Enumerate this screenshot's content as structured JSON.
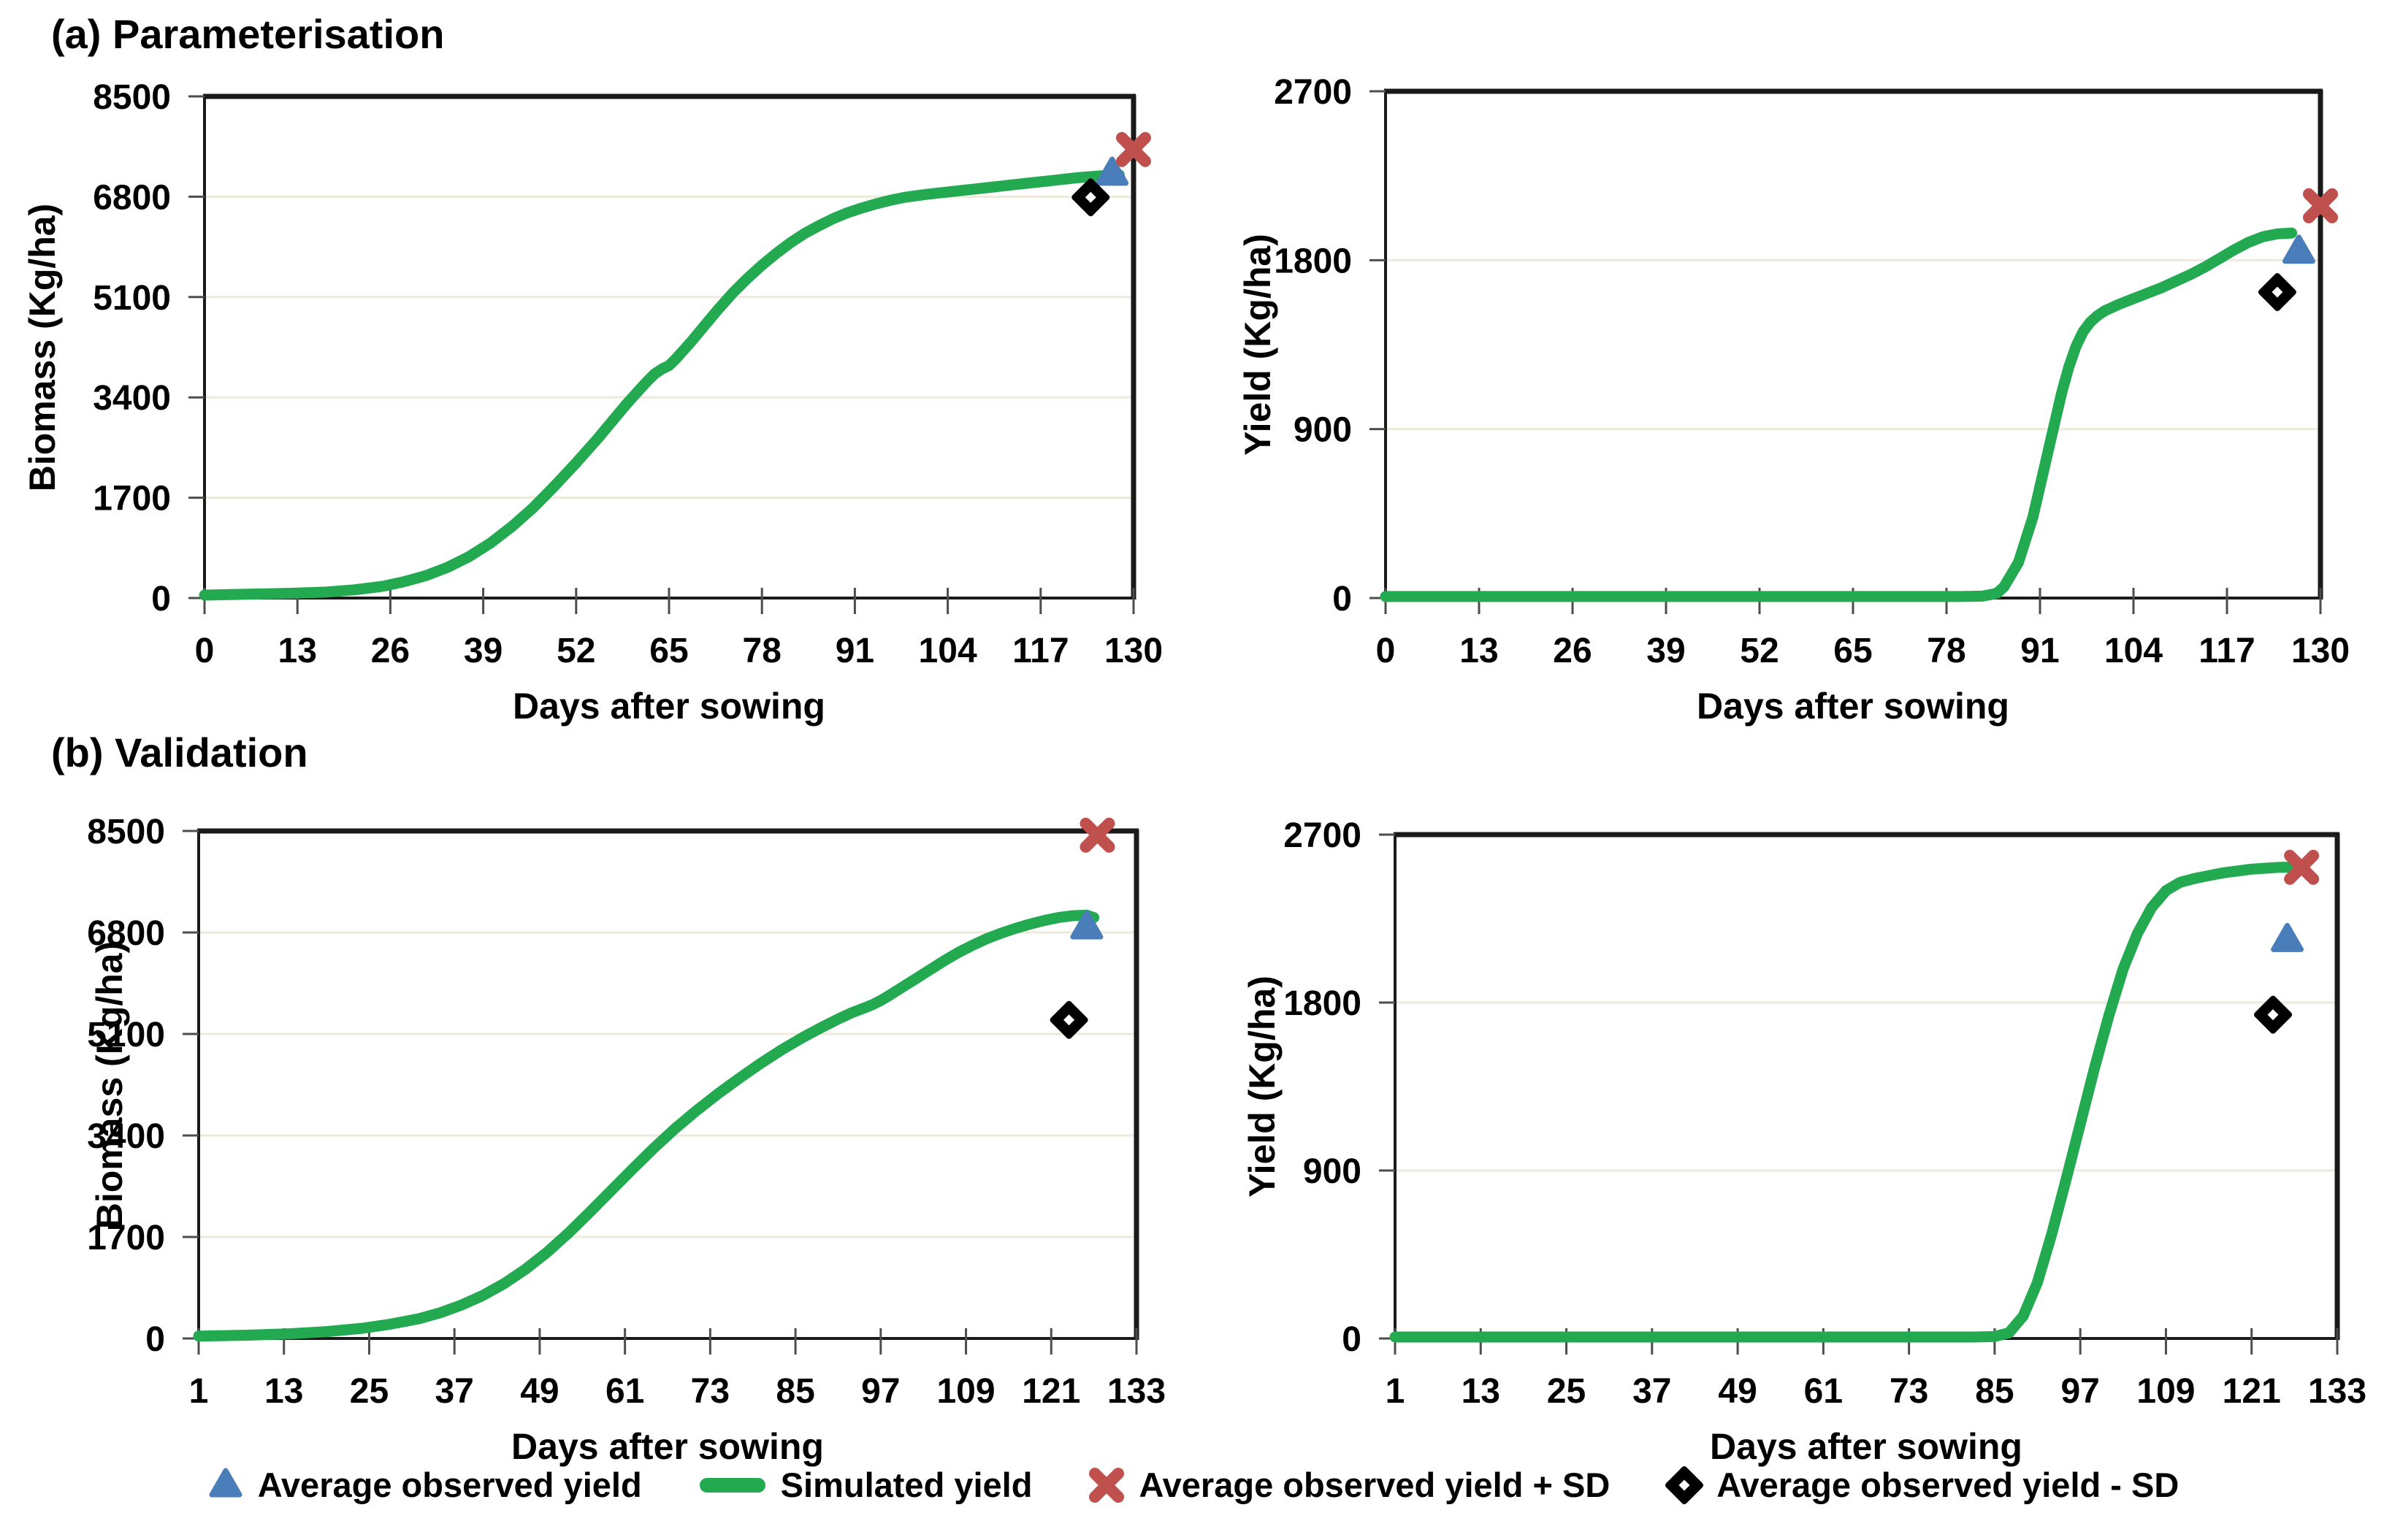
{
  "figure": {
    "panel_a_title": "(a) Parameterisation",
    "panel_b_title": "(b) Validation"
  },
  "colors": {
    "simulated_line": "#23aa50",
    "observed_triangle": "#4a7ebb",
    "plus_sd_x": "#c0504d",
    "minus_sd_diamond": "#000000",
    "gridline": "#eeeadb",
    "axis": "#1a1a1a",
    "tick": "#4d4d4d",
    "background": "#ffffff"
  },
  "legend": {
    "items": [
      {
        "shape": "triangle",
        "label": "Average observed yield"
      },
      {
        "shape": "line",
        "label": "Simulated yield"
      },
      {
        "shape": "x",
        "label": "Average observed yield + SD"
      },
      {
        "shape": "diamond",
        "label": "Average observed yield - SD"
      }
    ]
  },
  "chart_data": [
    {
      "id": "parameterisation-biomass",
      "type": "line",
      "panel": "(a) Parameterisation",
      "xlabel": "Days after sowing",
      "ylabel": "Biomass (Kg/ha)",
      "xlim": [
        0,
        130
      ],
      "ylim": [
        0,
        8500
      ],
      "xticks": [
        0,
        13,
        26,
        39,
        52,
        65,
        78,
        91,
        104,
        117,
        130
      ],
      "yticks": [
        0,
        1700,
        3400,
        5100,
        6800,
        8500
      ],
      "grid": true,
      "legend_position": "none",
      "series": [
        {
          "name": "Simulated yield",
          "points": [
            [
              0,
              50
            ],
            [
              6,
              65
            ],
            [
              12,
              80
            ],
            [
              17,
              100
            ],
            [
              21,
              140
            ],
            [
              25,
              200
            ],
            [
              28,
              280
            ],
            [
              31,
              380
            ],
            [
              34,
              520
            ],
            [
              37,
              700
            ],
            [
              40,
              930
            ],
            [
              43,
              1210
            ],
            [
              46,
              1530
            ],
            [
              49,
              1900
            ],
            [
              52,
              2290
            ],
            [
              55,
              2700
            ],
            [
              57,
              2990
            ],
            [
              59,
              3280
            ],
            [
              61,
              3550
            ],
            [
              62,
              3680
            ],
            [
              63,
              3800
            ],
            [
              64,
              3880
            ],
            [
              65,
              3940
            ],
            [
              66,
              4060
            ],
            [
              68,
              4330
            ],
            [
              70,
              4620
            ],
            [
              72,
              4910
            ],
            [
              74,
              5180
            ],
            [
              76,
              5420
            ],
            [
              78,
              5640
            ],
            [
              80,
              5840
            ],
            [
              82,
              6020
            ],
            [
              84,
              6180
            ],
            [
              86,
              6310
            ],
            [
              88,
              6430
            ],
            [
              90,
              6530
            ],
            [
              92,
              6610
            ],
            [
              94,
              6680
            ],
            [
              96,
              6740
            ],
            [
              98,
              6790
            ],
            [
              101,
              6840
            ],
            [
              104,
              6880
            ],
            [
              107,
              6920
            ],
            [
              110,
              6960
            ],
            [
              113,
              7000
            ],
            [
              116,
              7040
            ],
            [
              119,
              7080
            ],
            [
              122,
              7120
            ],
            [
              125,
              7150
            ],
            [
              128,
              7170
            ]
          ]
        }
      ],
      "markers": [
        {
          "name": "Average observed yield",
          "shape": "triangle",
          "x": 127,
          "y": 7190
        },
        {
          "name": "Average observed yield + SD",
          "shape": "x",
          "x": 130,
          "y": 7600
        },
        {
          "name": "Average observed yield - SD",
          "shape": "diamond",
          "x": 124,
          "y": 6790
        }
      ]
    },
    {
      "id": "parameterisation-yield",
      "type": "line",
      "panel": "(a) Parameterisation",
      "xlabel": "Days after sowing",
      "ylabel": "Yield (Kg/ha)",
      "xlim": [
        0,
        130
      ],
      "ylim": [
        0,
        2700
      ],
      "xticks": [
        0,
        13,
        26,
        39,
        52,
        65,
        78,
        91,
        104,
        117,
        130
      ],
      "yticks": [
        0,
        900,
        1800,
        2700
      ],
      "grid": true,
      "legend_position": "none",
      "series": [
        {
          "name": "Simulated yield",
          "points": [
            [
              0,
              8
            ],
            [
              20,
              8
            ],
            [
              40,
              8
            ],
            [
              60,
              8
            ],
            [
              75,
              8
            ],
            [
              80,
              8
            ],
            [
              83,
              10
            ],
            [
              85,
              25
            ],
            [
              86,
              60
            ],
            [
              88,
              190
            ],
            [
              90,
              430
            ],
            [
              92,
              760
            ],
            [
              94,
              1090
            ],
            [
              95,
              1230
            ],
            [
              96,
              1340
            ],
            [
              97,
              1420
            ],
            [
              98,
              1470
            ],
            [
              99,
              1505
            ],
            [
              100,
              1530
            ],
            [
              102,
              1565
            ],
            [
              104,
              1595
            ],
            [
              106,
              1625
            ],
            [
              108,
              1655
            ],
            [
              110,
              1690
            ],
            [
              112,
              1725
            ],
            [
              114,
              1765
            ],
            [
              116,
              1810
            ],
            [
              118,
              1855
            ],
            [
              120,
              1895
            ],
            [
              122,
              1925
            ],
            [
              124,
              1940
            ],
            [
              126,
              1945
            ]
          ]
        }
      ],
      "markers": [
        {
          "name": "Average observed yield",
          "shape": "triangle",
          "x": 127,
          "y": 1845
        },
        {
          "name": "Average observed yield + SD",
          "shape": "x",
          "x": 130,
          "y": 2090
        },
        {
          "name": "Average observed yield - SD",
          "shape": "diamond",
          "x": 124,
          "y": 1630
        }
      ]
    },
    {
      "id": "validation-biomass",
      "type": "line",
      "panel": "(b) Validation",
      "xlabel": "Days after sowing",
      "ylabel": "Biomass (Kg/ha)",
      "xlim": [
        1,
        133
      ],
      "ylim": [
        0,
        8500
      ],
      "xticks": [
        1,
        13,
        25,
        37,
        49,
        61,
        73,
        85,
        97,
        109,
        121,
        133
      ],
      "yticks": [
        0,
        1700,
        3400,
        5100,
        6800,
        8500
      ],
      "grid": true,
      "legend_position": "none",
      "series": [
        {
          "name": "Simulated yield",
          "points": [
            [
              1,
              40
            ],
            [
              8,
              55
            ],
            [
              14,
              80
            ],
            [
              19,
              115
            ],
            [
              24,
              170
            ],
            [
              28,
              240
            ],
            [
              32,
              330
            ],
            [
              35,
              430
            ],
            [
              38,
              560
            ],
            [
              41,
              720
            ],
            [
              44,
              920
            ],
            [
              47,
              1160
            ],
            [
              50,
              1440
            ],
            [
              53,
              1760
            ],
            [
              56,
              2110
            ],
            [
              59,
              2470
            ],
            [
              62,
              2830
            ],
            [
              65,
              3180
            ],
            [
              68,
              3510
            ],
            [
              71,
              3810
            ],
            [
              74,
              4090
            ],
            [
              77,
              4350
            ],
            [
              80,
              4600
            ],
            [
              83,
              4830
            ],
            [
              86,
              5040
            ],
            [
              89,
              5230
            ],
            [
              91,
              5350
            ],
            [
              93,
              5460
            ],
            [
              95,
              5550
            ],
            [
              96,
              5600
            ],
            [
              97,
              5660
            ],
            [
              98,
              5730
            ],
            [
              100,
              5880
            ],
            [
              102,
              6030
            ],
            [
              104,
              6180
            ],
            [
              106,
              6330
            ],
            [
              108,
              6470
            ],
            [
              110,
              6590
            ],
            [
              112,
              6700
            ],
            [
              114,
              6790
            ],
            [
              116,
              6870
            ],
            [
              118,
              6940
            ],
            [
              120,
              7000
            ],
            [
              122,
              7050
            ],
            [
              124,
              7080
            ],
            [
              126,
              7090
            ],
            [
              127,
              7050
            ]
          ]
        }
      ],
      "markers": [
        {
          "name": "Average observed yield",
          "shape": "triangle",
          "x": 126,
          "y": 6885
        },
        {
          "name": "Average observed yield + SD",
          "shape": "x",
          "x": 127.5,
          "y": 8430
        },
        {
          "name": "Average observed yield - SD",
          "shape": "diamond",
          "x": 123.5,
          "y": 5335
        }
      ]
    },
    {
      "id": "validation-yield",
      "type": "line",
      "panel": "(b) Validation",
      "xlabel": "Days after sowing",
      "ylabel": "Yield (Kg/ha)",
      "xlim": [
        1,
        133
      ],
      "ylim": [
        0,
        2700
      ],
      "xticks": [
        1,
        13,
        25,
        37,
        49,
        61,
        73,
        85,
        97,
        109,
        121,
        133
      ],
      "yticks": [
        0,
        900,
        1800,
        2700
      ],
      "grid": true,
      "legend_position": "none",
      "series": [
        {
          "name": "Simulated yield",
          "points": [
            [
              1,
              8
            ],
            [
              20,
              8
            ],
            [
              40,
              8
            ],
            [
              60,
              8
            ],
            [
              75,
              8
            ],
            [
              82,
              8
            ],
            [
              85,
              10
            ],
            [
              87,
              30
            ],
            [
              89,
              120
            ],
            [
              91,
              300
            ],
            [
              93,
              560
            ],
            [
              95,
              850
            ],
            [
              97,
              1150
            ],
            [
              99,
              1450
            ],
            [
              101,
              1730
            ],
            [
              103,
              1980
            ],
            [
              105,
              2170
            ],
            [
              107,
              2310
            ],
            [
              109,
              2400
            ],
            [
              111,
              2445
            ],
            [
              113,
              2465
            ],
            [
              115,
              2480
            ],
            [
              117,
              2495
            ],
            [
              119,
              2505
            ],
            [
              121,
              2515
            ],
            [
              123,
              2520
            ],
            [
              125,
              2525
            ],
            [
              127,
              2525
            ],
            [
              128,
              2520
            ]
          ]
        }
      ],
      "markers": [
        {
          "name": "Average observed yield",
          "shape": "triangle",
          "x": 126,
          "y": 2135
        },
        {
          "name": "Average observed yield + SD",
          "shape": "x",
          "x": 128,
          "y": 2525
        },
        {
          "name": "Average observed yield - SD",
          "shape": "diamond",
          "x": 124,
          "y": 1735
        }
      ]
    }
  ]
}
